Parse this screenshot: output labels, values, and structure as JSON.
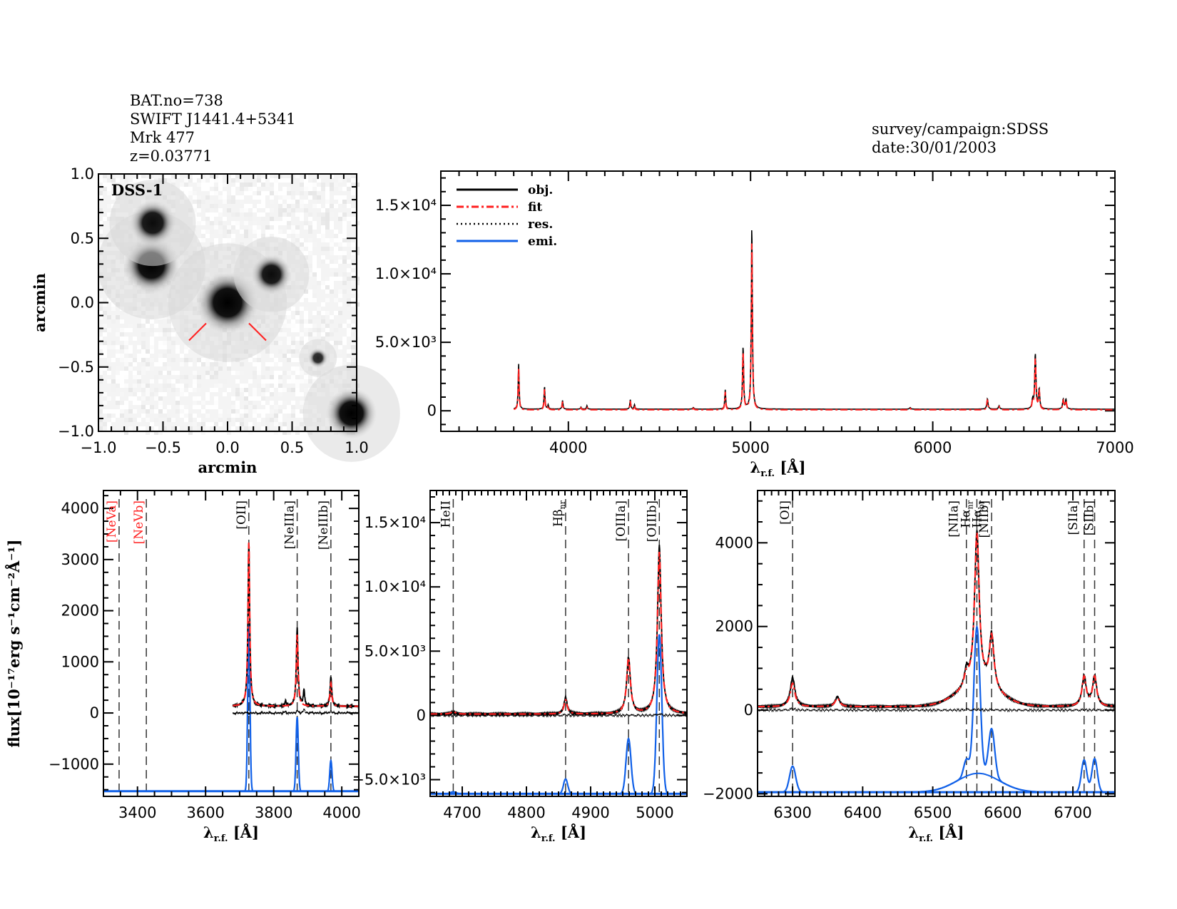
{
  "header": {
    "info_lines": [
      "BAT.no=738",
      "SWIFT J1441.4+5341",
      "Mrk 477",
      "z=0.03771"
    ],
    "survey": "survey/campaign:SDSS",
    "date": "date:30/01/2003"
  },
  "colors": {
    "obj": "#000000",
    "fit": "#ff2020",
    "res": "#000000",
    "emi": "#1060e8",
    "marker": "#ff2020",
    "line_label_red": "#ff2020"
  },
  "chart_data": [
    {
      "id": "image",
      "type": "heatmap",
      "title": "",
      "label": "DSS-1",
      "xlabel": "arcmin",
      "ylabel": "arcmin",
      "xlim": [
        -1.0,
        1.0
      ],
      "ylim": [
        -1.0,
        1.0
      ],
      "xticks": [
        "−1.0",
        "−0.5",
        "0.0",
        "0.5",
        "1.0"
      ],
      "yticks": [
        "−1.0",
        "−0.5",
        "0.0",
        "0.5",
        "1.0"
      ],
      "xtick_values": [
        -1.0,
        -0.5,
        0.0,
        0.5,
        1.0
      ],
      "ytick_values": [
        -1.0,
        -0.5,
        0.0,
        0.5,
        1.0
      ],
      "sources": [
        {
          "x": 0.0,
          "y": 0.0,
          "brightness": 1.0,
          "size": 0.11
        },
        {
          "x": -0.59,
          "y": 0.29,
          "brightness": 1.0,
          "size": 0.1
        },
        {
          "x": -0.58,
          "y": 0.62,
          "brightness": 0.95,
          "size": 0.08
        },
        {
          "x": 0.34,
          "y": 0.22,
          "brightness": 0.95,
          "size": 0.07
        },
        {
          "x": 0.7,
          "y": -0.43,
          "brightness": 0.85,
          "size": 0.035
        },
        {
          "x": 0.96,
          "y": -0.86,
          "brightness": 1.0,
          "size": 0.09
        }
      ],
      "target_marker": {
        "x": 0.0,
        "y": 0.0
      }
    },
    {
      "id": "full",
      "type": "line",
      "title": "",
      "xlabel": "λ_r.f. [Å]",
      "ylabel": "",
      "xlim": [
        3300,
        7000
      ],
      "ylim": [
        -1500,
        17500
      ],
      "xticks": [
        "4000",
        "5000",
        "6000",
        "7000"
      ],
      "xtick_values": [
        4000,
        5000,
        6000,
        7000
      ],
      "yticks": [
        "0",
        "5.0×10³",
        "1.0×10⁴",
        "1.5×10⁴"
      ],
      "ytick_values": [
        0,
        5000,
        10000,
        15000
      ],
      "legend": [
        "obj.",
        "fit",
        "res.",
        "emi."
      ],
      "legend_position": "top-left",
      "data_range": [
        3700,
        7000
      ],
      "continuum": 120,
      "fit_offset": -50,
      "lines": [
        {
          "x": 3727,
          "peak": 3300,
          "w": 3
        },
        {
          "x": 3869,
          "peak": 1650,
          "w": 3
        },
        {
          "x": 3889,
          "peak": 300,
          "w": 3
        },
        {
          "x": 3968,
          "peak": 650,
          "w": 3
        },
        {
          "x": 4069,
          "peak": 150,
          "w": 3
        },
        {
          "x": 4102,
          "peak": 250,
          "w": 3
        },
        {
          "x": 4340,
          "peak": 700,
          "w": 3
        },
        {
          "x": 4363,
          "peak": 320,
          "w": 3
        },
        {
          "x": 4686,
          "peak": 120,
          "w": 4
        },
        {
          "x": 4861,
          "peak": 1400,
          "w": 3
        },
        {
          "x": 4959,
          "peak": 4500,
          "w": 3.5
        },
        {
          "x": 5007,
          "peak": 13300,
          "w": 3.5
        },
        {
          "x": 5876,
          "peak": 120,
          "w": 4
        },
        {
          "x": 6300,
          "peak": 750,
          "w": 4
        },
        {
          "x": 6364,
          "peak": 250,
          "w": 4
        },
        {
          "x": 6548,
          "peak": 600,
          "w": 4
        },
        {
          "x": 6563,
          "peak": 4000,
          "w": 4
        },
        {
          "x": 6584,
          "peak": 1400,
          "w": 4
        },
        {
          "x": 6716,
          "peak": 700,
          "w": 4
        },
        {
          "x": 6731,
          "peak": 700,
          "w": 4
        }
      ]
    },
    {
      "id": "zoom-oii",
      "type": "line",
      "title": "",
      "xlabel": "λ_r.f. [Å]",
      "ylabel": "flux[10⁻¹⁷erg s⁻¹cm⁻²Å⁻¹]",
      "xlim": [
        3300,
        4050
      ],
      "ylim": [
        -1630,
        4350
      ],
      "xticks": [
        "3400",
        "3600",
        "3800",
        "4000"
      ],
      "xtick_values": [
        3400,
        3600,
        3800,
        4000
      ],
      "yticks": [
        "−1000",
        "0",
        "1000",
        "2000",
        "3000",
        "4000"
      ],
      "ytick_values": [
        -1000,
        0,
        1000,
        2000,
        3000,
        4000
      ],
      "data_range": [
        3680,
        4050
      ],
      "continuum": 130,
      "emi_baseline": -1530,
      "line_markers": [
        {
          "label": "[NeVa]",
          "x": 3346,
          "color": "red"
        },
        {
          "label": "[NeVb]",
          "x": 3426,
          "color": "red"
        },
        {
          "label": "[OII]",
          "x": 3727,
          "color": "black"
        },
        {
          "label": "[NeIIIa]",
          "x": 3869,
          "color": "black"
        },
        {
          "label": "[NeIIIb]",
          "x": 3968,
          "color": "black"
        }
      ],
      "lines": [
        {
          "x": 3727,
          "peak": 3200,
          "fit": 3200,
          "emi": 3250,
          "w": 3
        },
        {
          "x": 3869,
          "peak": 1550,
          "fit": 1400,
          "emi": 1450,
          "w": 3
        },
        {
          "x": 3889,
          "peak": 300,
          "fit": 0,
          "emi": 0,
          "w": 2.5
        },
        {
          "x": 3968,
          "peak": 580,
          "fit": 450,
          "emi": 600,
          "w": 3
        },
        {
          "x": 3835,
          "peak": 100,
          "fit": 0,
          "emi": 0,
          "w": 2
        }
      ]
    },
    {
      "id": "zoom-oiii",
      "type": "line",
      "title": "",
      "xlabel": "λ_r.f. [Å]",
      "ylabel": "",
      "xlim": [
        4650,
        5050
      ],
      "ylim": [
        -6300,
        17500
      ],
      "xticks": [
        "4700",
        "4800",
        "4900",
        "5000"
      ],
      "xtick_values": [
        4700,
        4800,
        4900,
        5000
      ],
      "yticks": [
        "−5.0×10³",
        "0",
        "5.0×10³",
        "1.0×10⁴",
        "1.5×10⁴"
      ],
      "ytick_values": [
        -5000,
        0,
        5000,
        10000,
        15000
      ],
      "data_range": [
        4650,
        5050
      ],
      "continuum": 100,
      "emi_baseline": -6100,
      "line_markers": [
        {
          "label": "HeII",
          "x": 4686,
          "color": "black"
        },
        {
          "label": "Hβ_nr",
          "x": 4861,
          "color": "black"
        },
        {
          "label": "[OIIIa]",
          "x": 4959,
          "color": "black"
        },
        {
          "label": "[OIIIb]",
          "x": 5007,
          "color": "black"
        }
      ],
      "lines": [
        {
          "x": 4686,
          "peak": 150,
          "fit": 200,
          "emi": 150,
          "w": 4
        },
        {
          "x": 4861,
          "peak": 1300,
          "fit": 1100,
          "emi": 1150,
          "w": 3
        },
        {
          "x": 4959,
          "peak": 4400,
          "fit": 4300,
          "emi": 4300,
          "w": 3.5
        },
        {
          "x": 5007,
          "peak": 13100,
          "fit": 12600,
          "emi": 12400,
          "w": 3.5
        }
      ]
    },
    {
      "id": "zoom-halpha",
      "type": "line",
      "title": "",
      "xlabel": "λ_r.f. [Å]",
      "ylabel": "",
      "xlim": [
        6250,
        6760
      ],
      "ylim": [
        -2060,
        5250
      ],
      "xticks": [
        "6300",
        "6400",
        "6500",
        "6600",
        "6700"
      ],
      "xtick_values": [
        6300,
        6400,
        6500,
        6600,
        6700
      ],
      "yticks": [
        "−2000",
        "0",
        "2000",
        "4000"
      ],
      "ytick_values": [
        -2000,
        0,
        2000,
        4000
      ],
      "data_range": [
        6250,
        6760
      ],
      "continuum": 80,
      "emi_baseline": -1960,
      "line_markers": [
        {
          "label": "[OI]",
          "x": 6300,
          "color": "black"
        },
        {
          "label": "[NIIa]",
          "x": 6548,
          "color": "black"
        },
        {
          "label": "Hα_nr",
          "x": 6563,
          "color": "black"
        },
        {
          "label": "Hα_br",
          "x": 6563,
          "color": "black"
        },
        {
          "label": "[NIIb]",
          "x": 6584,
          "color": "black"
        },
        {
          "label": "[SIIa]",
          "x": 6716,
          "color": "black"
        },
        {
          "label": "[SIIb]",
          "x": 6731,
          "color": "black"
        }
      ],
      "lines": [
        {
          "x": 6300,
          "peak": 700,
          "fit": 560,
          "emi": 620,
          "w": 4
        },
        {
          "x": 6364,
          "peak": 230,
          "fit": 200,
          "emi": 0,
          "w": 4
        },
        {
          "x": 6548,
          "peak": 380,
          "fit": 300,
          "emi": 400,
          "w": 3.5
        },
        {
          "x": 6563,
          "peak": 3700,
          "fit": 3650,
          "emi": 3500,
          "w": 4
        },
        {
          "x": 6584,
          "peak": 1300,
          "fit": 1250,
          "emi": 1150,
          "w": 4
        },
        {
          "x": 6716,
          "peak": 730,
          "fit": 700,
          "emi": 770,
          "w": 3.5
        },
        {
          "x": 6731,
          "peak": 730,
          "fit": 700,
          "emi": 800,
          "w": 3.5
        }
      ],
      "broad": {
        "x": 6565,
        "peak": 450,
        "w": 30
      }
    }
  ]
}
